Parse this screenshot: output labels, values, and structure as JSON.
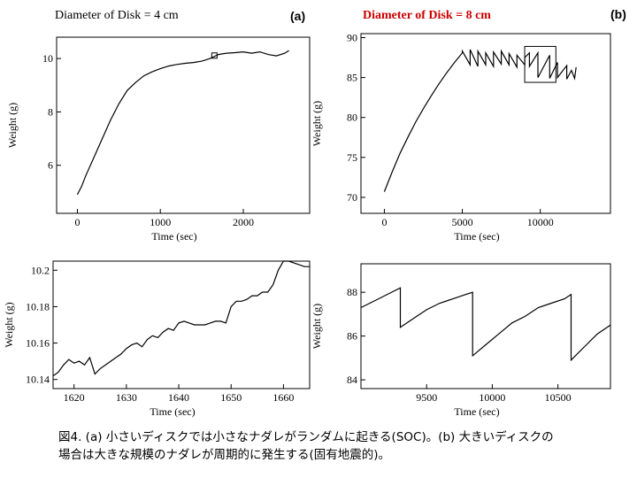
{
  "panels": {
    "a": {
      "title": "Diameter of Disk = 4 cm",
      "tag": "(a)",
      "main": {
        "type": "line",
        "xlabel": "Time (sec)",
        "ylabel": "Weight (g)",
        "xlim": [
          -250,
          2800
        ],
        "ylim": [
          4.2,
          10.8
        ],
        "xticks": [
          0,
          1000,
          2000
        ],
        "yticks": [
          6,
          8,
          10
        ],
        "series": [
          {
            "x": [
              0,
              50,
              100,
              200,
              300,
              400,
              500,
              600,
              700,
              800,
              900,
              1000,
              1100,
              1200,
              1300,
              1400,
              1500,
              1600,
              1700,
              1800,
              1900,
              2000,
              2100,
              2200,
              2300,
              2400,
              2500,
              2550
            ],
            "y": [
              4.9,
              5.2,
              5.6,
              6.3,
              7.0,
              7.7,
              8.3,
              8.8,
              9.1,
              9.35,
              9.5,
              9.62,
              9.72,
              9.78,
              9.82,
              9.85,
              9.9,
              10.0,
              10.15,
              10.2,
              10.22,
              10.25,
              10.2,
              10.25,
              10.15,
              10.1,
              10.2,
              10.3
            ]
          }
        ],
        "highlight_box": {
          "x": [
            1620,
            1665
          ],
          "y": [
            10.14,
            10.21
          ]
        }
      },
      "zoom": {
        "type": "line",
        "xlabel": "Time (sec)",
        "ylabel": "Weight (g)",
        "xlim": [
          1616,
          1665
        ],
        "ylim": [
          10.135,
          10.205
        ],
        "xticks": [
          1620,
          1630,
          1640,
          1650,
          1660
        ],
        "yticks": [
          10.14,
          10.16,
          10.18,
          10.2
        ],
        "series": [
          {
            "x": [
              1616,
              1617,
              1618,
              1619,
              1620,
              1621,
              1622,
              1623,
              1624,
              1625,
              1626,
              1627,
              1628,
              1629,
              1630,
              1631,
              1632,
              1633,
              1634,
              1635,
              1636,
              1637,
              1638,
              1639,
              1640,
              1641,
              1642,
              1643,
              1644,
              1645,
              1646,
              1647,
              1648,
              1649,
              1650,
              1651,
              1652,
              1653,
              1654,
              1655,
              1656,
              1657,
              1658,
              1659,
              1660,
              1661,
              1662,
              1663,
              1664,
              1665
            ],
            "y": [
              10.142,
              10.144,
              10.148,
              10.151,
              10.149,
              10.15,
              10.148,
              10.152,
              10.143,
              10.146,
              10.148,
              10.15,
              10.152,
              10.154,
              10.157,
              10.159,
              10.16,
              10.158,
              10.162,
              10.164,
              10.163,
              10.166,
              10.168,
              10.167,
              10.171,
              10.172,
              10.171,
              10.17,
              10.17,
              10.17,
              10.171,
              10.172,
              10.172,
              10.171,
              10.18,
              10.183,
              10.183,
              10.184,
              10.186,
              10.186,
              10.188,
              10.188,
              10.192,
              10.2,
              10.205,
              10.205,
              10.204,
              10.203,
              10.202,
              10.202
            ]
          }
        ]
      }
    },
    "b": {
      "title": "Diameter of Disk = 8 cm",
      "tag": "(b)",
      "main": {
        "type": "line",
        "xlabel": "Time (sec)",
        "ylabel": "Weight (g)",
        "xlim": [
          -1500,
          14500
        ],
        "ylim": [
          68,
          90.5
        ],
        "xticks": [
          0,
          5000,
          10000
        ],
        "yticks": [
          70,
          75,
          80,
          85,
          90
        ],
        "series": [
          {
            "x": [
              0,
              500,
              1000,
              1500,
              2000,
              2500,
              3000,
              3500,
              4000,
              4500,
              5000,
              5000,
              5500,
              5500,
              6000,
              6000,
              6500,
              6500,
              7000,
              7000,
              7500,
              7500,
              8000,
              8000,
              8500,
              8500,
              9000,
              9000,
              9300,
              9300,
              9850,
              9850,
              10600,
              10600,
              11100,
              11100,
              11700,
              11700,
              12000,
              12200,
              12300
            ],
            "y": [
              70.7,
              73.2,
              75.5,
              77.5,
              79.4,
              81.1,
              82.7,
              84.2,
              85.6,
              86.9,
              88.1,
              88.3,
              86.6,
              88.5,
              86.4,
              88.3,
              86.6,
              88.1,
              86.4,
              88.2,
              86.7,
              88.3,
              86.6,
              88.0,
              86.3,
              87.8,
              86.6,
              87.5,
              88.1,
              86.4,
              88.1,
              85.0,
              87.8,
              84.9,
              86.9,
              85.0,
              86.5,
              84.8,
              85.9,
              84.9,
              86.3
            ]
          }
        ],
        "highlight_box": {
          "x": [
            9000,
            11000
          ],
          "y": [
            84.4,
            88.9
          ]
        }
      },
      "zoom": {
        "type": "line",
        "xlabel": "Time (sec)",
        "ylabel": "Weight (g)",
        "xlim": [
          9000,
          10900
        ],
        "ylim": [
          83.6,
          89.3
        ],
        "xticks": [
          9500,
          10000,
          10500
        ],
        "yticks": [
          84,
          86,
          88
        ],
        "series": [
          {
            "x": [
              9000,
              9100,
              9200,
              9300,
              9300,
              9400,
              9500,
              9600,
              9700,
              9800,
              9850,
              9850,
              9950,
              10050,
              10150,
              10250,
              10350,
              10450,
              10550,
              10600,
              10600,
              10700,
              10800,
              10900
            ],
            "y": [
              87.3,
              87.6,
              87.9,
              88.2,
              86.4,
              86.8,
              87.2,
              87.5,
              87.7,
              87.9,
              88.0,
              85.1,
              85.6,
              86.1,
              86.6,
              86.9,
              87.3,
              87.5,
              87.7,
              87.9,
              84.9,
              85.5,
              86.1,
              86.5
            ]
          }
        ]
      }
    }
  },
  "caption": {
    "line1": "図4. (a) 小さいディスクでは小さなナダレがランダムに起きる(SOC)。(b) 大きいディスクの",
    "line2": "場合は大きな規模のナダレが周期的に発生する(固有地震的)。"
  }
}
